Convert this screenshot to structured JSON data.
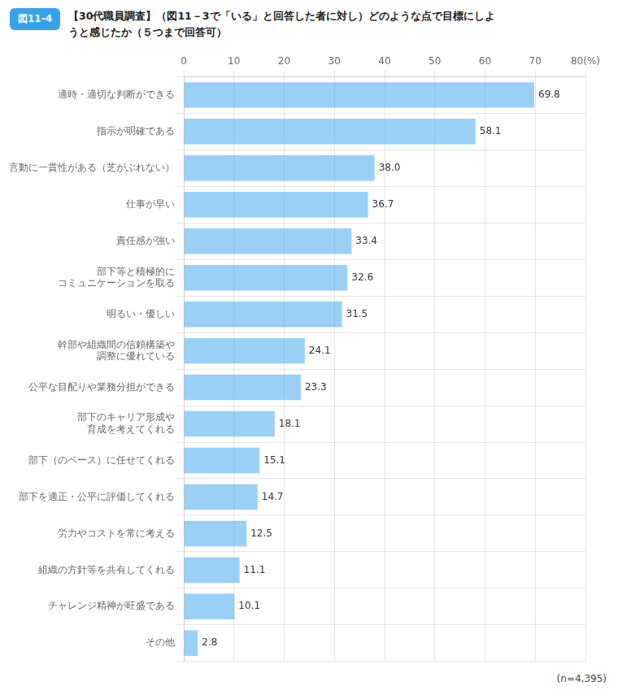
{
  "chart_data": {
    "type": "bar",
    "orientation": "horizontal",
    "title": [
      "【30代職員調査】（図11－3で「いる」と回答した者に対し）どのような点で目標にしよ",
      "うと感じたか（５つまで回答可）"
    ],
    "annotations": [
      "図11-4",
      "(n=4,395)"
    ],
    "categories": [
      "適時・適切な判断ができる",
      "指示が明確である",
      "言動に一貫性がある（芝がぶれない）",
      "仕事が早い",
      "責任感が強い",
      "部下等と積極的に\nコミュニケーションを取る",
      "明るい・優しい",
      "幹部や組織間の信頼構築や\n調整に優れている",
      "公平な目配りや業務分担ができる",
      "部下のキャリア形成や\n育成を考えてくれる",
      "部下（のペース）に任せてくれる",
      "部下を適正・公平に評価してくれる",
      "労力やコストを常に考える",
      "組織の方針等を共有してくれる",
      "チャレンジ精神が旺盛である",
      "その他"
    ],
    "values": [
      69.8,
      58.1,
      38.0,
      36.7,
      33.4,
      32.6,
      31.5,
      24.1,
      23.3,
      18.1,
      15.1,
      14.7,
      12.5,
      11.1,
      10.1,
      2.8
    ],
    "value_labels": [
      "69.8",
      "58.1",
      "38.0",
      "36.7",
      "33.4",
      "32.6",
      "31.5",
      "24.1",
      "23.3",
      "18.1",
      "15.1",
      "14.7",
      "12.5",
      "11.1",
      "10.1",
      "2.8"
    ],
    "data_labels": true,
    "xlim": [
      0,
      80
    ],
    "xticks": [
      0,
      10,
      20,
      30,
      40,
      50,
      60,
      70,
      {
        "value": 80,
        "label": "80(%)"
      }
    ],
    "grid": true
  }
}
